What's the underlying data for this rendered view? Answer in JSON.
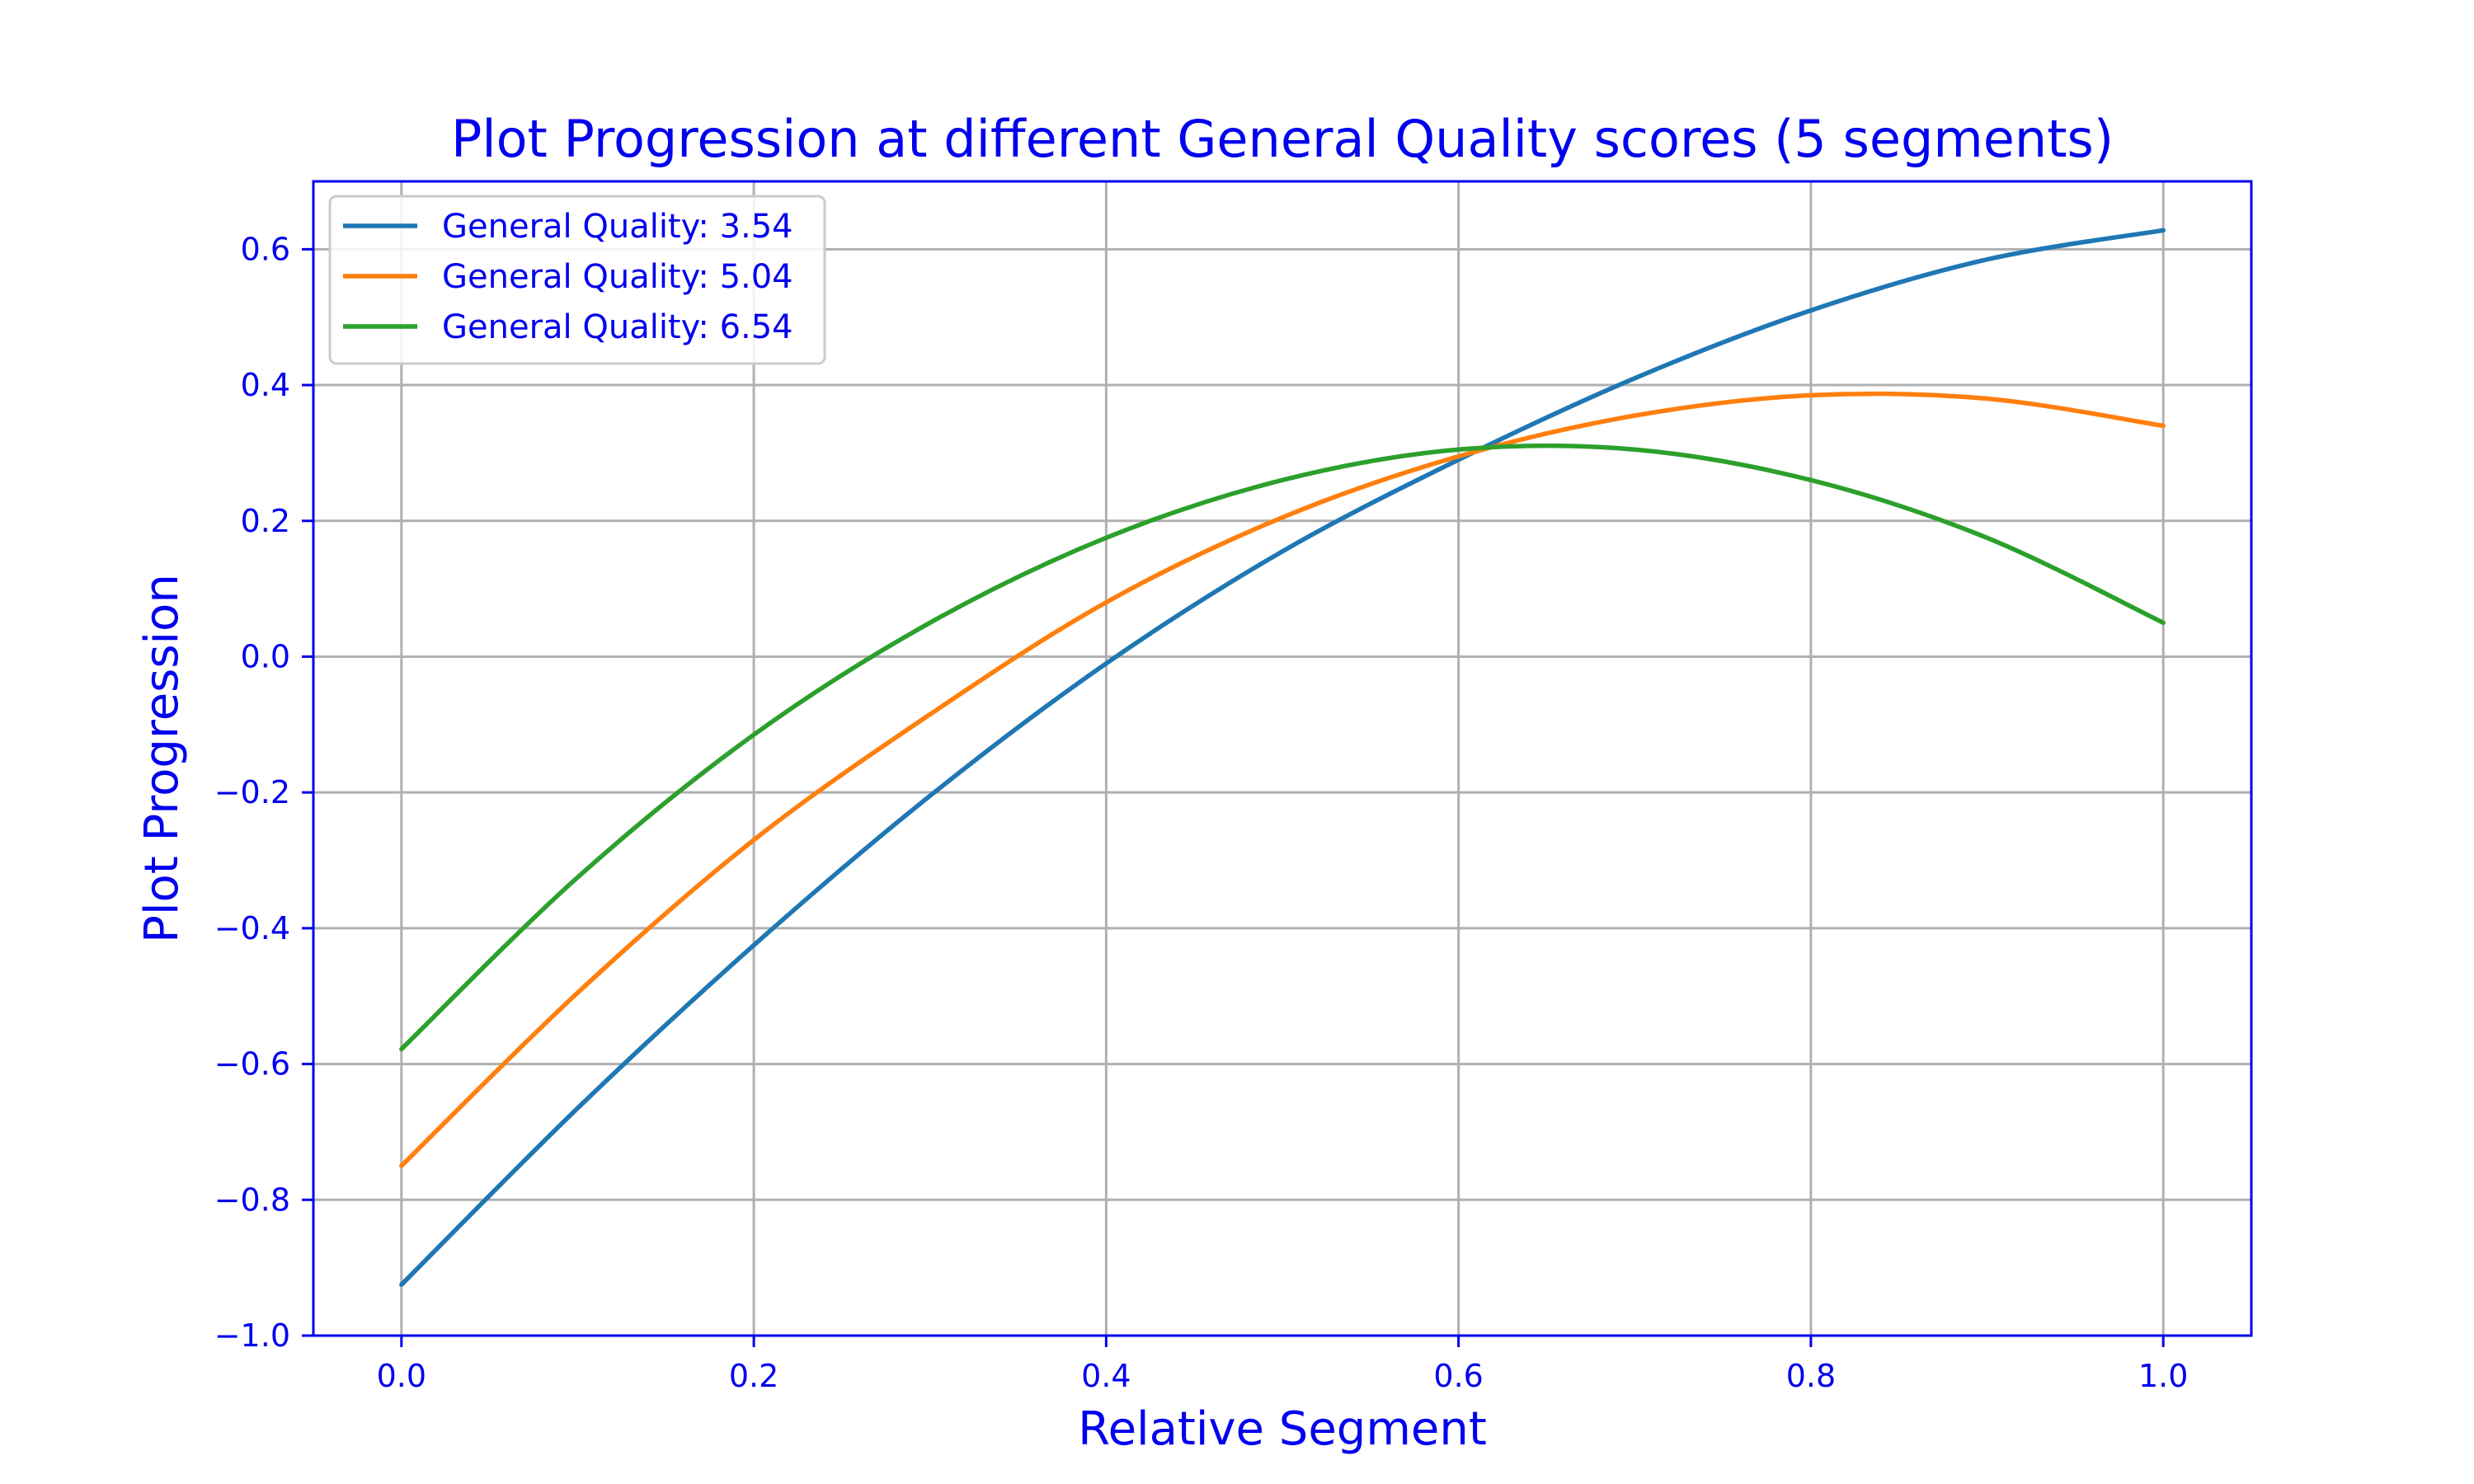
{
  "chart_data": {
    "type": "line",
    "title": "Plot Progression at different General Quality scores (5 segments)",
    "xlabel": "Relative Segment",
    "ylabel": "Plot Progression",
    "xlim": [
      -0.05,
      1.05
    ],
    "ylim": [
      -1.0,
      0.7
    ],
    "xticks": [
      0.0,
      0.2,
      0.4,
      0.6,
      0.8,
      1.0
    ],
    "xtick_labels": [
      "0.0",
      "0.2",
      "0.4",
      "0.6",
      "0.8",
      "1.0"
    ],
    "yticks": [
      -1.0,
      -0.8,
      -0.6,
      -0.4,
      -0.2,
      0.0,
      0.2,
      0.4,
      0.6
    ],
    "ytick_labels": [
      "−1.0",
      "−0.8",
      "−0.6",
      "−0.4",
      "−0.2",
      "0.0",
      "0.2",
      "0.4",
      "0.6"
    ],
    "grid": true,
    "legend_position": "top-left",
    "x": [
      0.0,
      0.1,
      0.2,
      0.3,
      0.4,
      0.5,
      0.6,
      0.7,
      0.8,
      0.9,
      1.0
    ],
    "series": [
      {
        "name": "General Quality: 3.54",
        "color": "#1f77b4",
        "values": [
          -0.925,
          -0.665,
          -0.425,
          -0.205,
          -0.01,
          0.155,
          0.29,
          0.41,
          0.51,
          0.585,
          0.628
        ]
      },
      {
        "name": "General Quality: 5.04",
        "color": "#ff7f0e",
        "values": [
          -0.75,
          -0.495,
          -0.27,
          -0.085,
          0.08,
          0.205,
          0.295,
          0.355,
          0.385,
          0.38,
          0.34
        ]
      },
      {
        "name": "General Quality: 6.54",
        "color": "#2ca02c",
        "values": [
          -0.578,
          -0.325,
          -0.115,
          0.05,
          0.175,
          0.26,
          0.305,
          0.305,
          0.26,
          0.175,
          0.05
        ]
      }
    ]
  }
}
